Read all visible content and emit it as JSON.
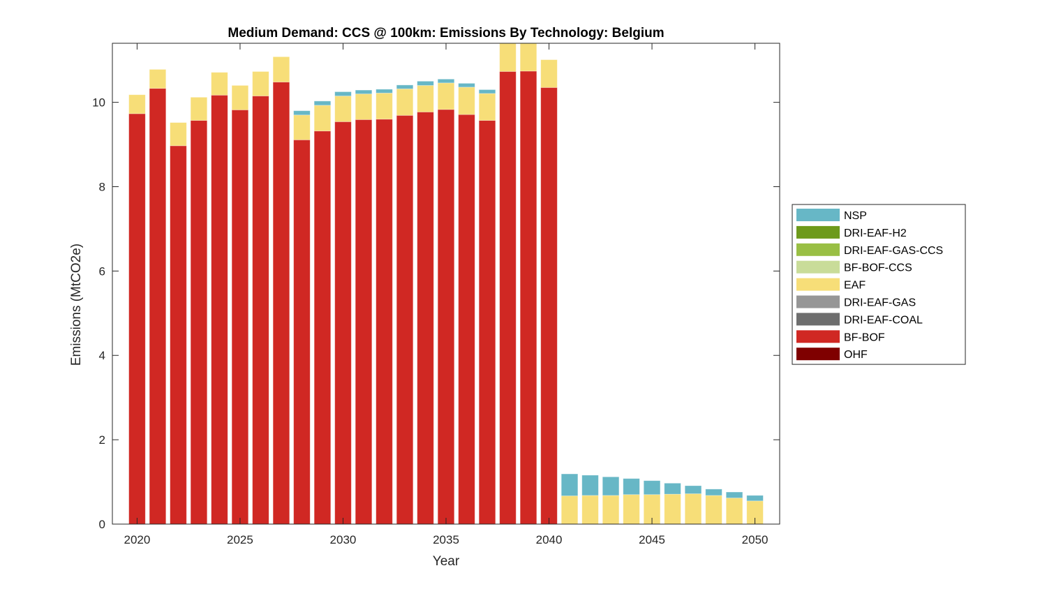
{
  "chart_data": {
    "type": "bar",
    "stacked": true,
    "title": "Medium Demand: CCS @ 100km: Emissions By Technology: Belgium",
    "xlabel": "Year",
    "ylabel": "Emissions (MtCO2e)",
    "xlim": [
      2018.8,
      2051.2
    ],
    "ylim": [
      0,
      11.4
    ],
    "xticks": [
      2020,
      2025,
      2030,
      2035,
      2040,
      2045,
      2050
    ],
    "yticks": [
      0,
      2,
      4,
      6,
      8,
      10
    ],
    "grid": false,
    "legend_position": "outside-right",
    "x": [
      2020,
      2021,
      2022,
      2023,
      2024,
      2025,
      2026,
      2027,
      2028,
      2029,
      2030,
      2031,
      2032,
      2033,
      2034,
      2035,
      2036,
      2037,
      2038,
      2039,
      2040,
      2041,
      2042,
      2043,
      2044,
      2045,
      2046,
      2047,
      2048,
      2049,
      2050
    ],
    "stack_order": [
      "OHF",
      "BF-BOF",
      "DRI-EAF-COAL",
      "DRI-EAF-GAS",
      "EAF",
      "BF-BOF-CCS",
      "DRI-EAF-GAS-CCS",
      "DRI-EAF-H2",
      "NSP"
    ],
    "series": [
      {
        "name": "OHF",
        "color": "#7f0000",
        "values": [
          0,
          0,
          0,
          0,
          0,
          0,
          0,
          0,
          0,
          0,
          0,
          0,
          0,
          0,
          0,
          0,
          0,
          0,
          0,
          0,
          0,
          0,
          0,
          0,
          0,
          0,
          0,
          0,
          0,
          0,
          0
        ]
      },
      {
        "name": "BF-BOF",
        "color": "#d02823",
        "values": [
          9.73,
          10.33,
          8.97,
          9.57,
          10.17,
          9.82,
          10.15,
          10.48,
          9.11,
          9.32,
          9.54,
          9.59,
          9.6,
          9.69,
          9.77,
          9.83,
          9.71,
          9.57,
          10.73,
          10.74,
          10.35,
          0,
          0,
          0,
          0,
          0,
          0,
          0,
          0,
          0,
          0
        ]
      },
      {
        "name": "DRI-EAF-COAL",
        "color": "#6e6e6e",
        "values": [
          0,
          0,
          0,
          0,
          0,
          0,
          0,
          0,
          0,
          0,
          0,
          0,
          0,
          0,
          0,
          0,
          0,
          0,
          0,
          0,
          0,
          0,
          0,
          0,
          0,
          0,
          0,
          0,
          0,
          0,
          0
        ]
      },
      {
        "name": "DRI-EAF-GAS",
        "color": "#969696",
        "values": [
          0,
          0,
          0,
          0,
          0,
          0,
          0,
          0,
          0,
          0,
          0,
          0,
          0,
          0,
          0,
          0,
          0,
          0,
          0,
          0,
          0,
          0,
          0,
          0,
          0,
          0,
          0,
          0,
          0,
          0,
          0
        ]
      },
      {
        "name": "EAF",
        "color": "#f7de78",
        "values": [
          0.45,
          0.45,
          0.55,
          0.55,
          0.54,
          0.58,
          0.58,
          0.6,
          0.59,
          0.61,
          0.61,
          0.61,
          0.62,
          0.63,
          0.63,
          0.63,
          0.65,
          0.64,
          1.15,
          1.15,
          0.66,
          0.67,
          0.68,
          0.68,
          0.7,
          0.7,
          0.71,
          0.72,
          0.68,
          0.62,
          0.55
        ]
      },
      {
        "name": "BF-BOF-CCS",
        "color": "#c9dc99",
        "values": [
          0,
          0,
          0,
          0,
          0,
          0,
          0,
          0,
          0,
          0,
          0,
          0,
          0,
          0,
          0,
          0,
          0,
          0,
          0,
          0,
          0,
          0,
          0,
          0,
          0,
          0,
          0,
          0,
          0,
          0,
          0
        ]
      },
      {
        "name": "DRI-EAF-GAS-CCS",
        "color": "#99bf44",
        "values": [
          0,
          0,
          0,
          0,
          0,
          0,
          0,
          0,
          0,
          0,
          0,
          0,
          0,
          0,
          0,
          0,
          0,
          0,
          0,
          0,
          0,
          0,
          0,
          0,
          0,
          0,
          0,
          0,
          0,
          0,
          0
        ]
      },
      {
        "name": "DRI-EAF-H2",
        "color": "#6d9a1b",
        "values": [
          0,
          0,
          0,
          0,
          0,
          0,
          0,
          0,
          0,
          0,
          0,
          0,
          0,
          0,
          0,
          0,
          0,
          0,
          0,
          0,
          0,
          0,
          0,
          0,
          0,
          0,
          0,
          0,
          0,
          0,
          0
        ]
      },
      {
        "name": "NSP",
        "color": "#67b7c6",
        "values": [
          0,
          0,
          0,
          0,
          0,
          0,
          0,
          0,
          0.1,
          0.1,
          0.1,
          0.09,
          0.09,
          0.09,
          0.1,
          0.09,
          0.09,
          0.09,
          0,
          0,
          0,
          0.52,
          0.48,
          0.44,
          0.38,
          0.33,
          0.26,
          0.19,
          0.15,
          0.14,
          0.13
        ]
      }
    ],
    "legend_entries": [
      "NSP",
      "DRI-EAF-H2",
      "DRI-EAF-GAS-CCS",
      "BF-BOF-CCS",
      "EAF",
      "DRI-EAF-GAS",
      "DRI-EAF-COAL",
      "BF-BOF",
      "OHF"
    ]
  }
}
